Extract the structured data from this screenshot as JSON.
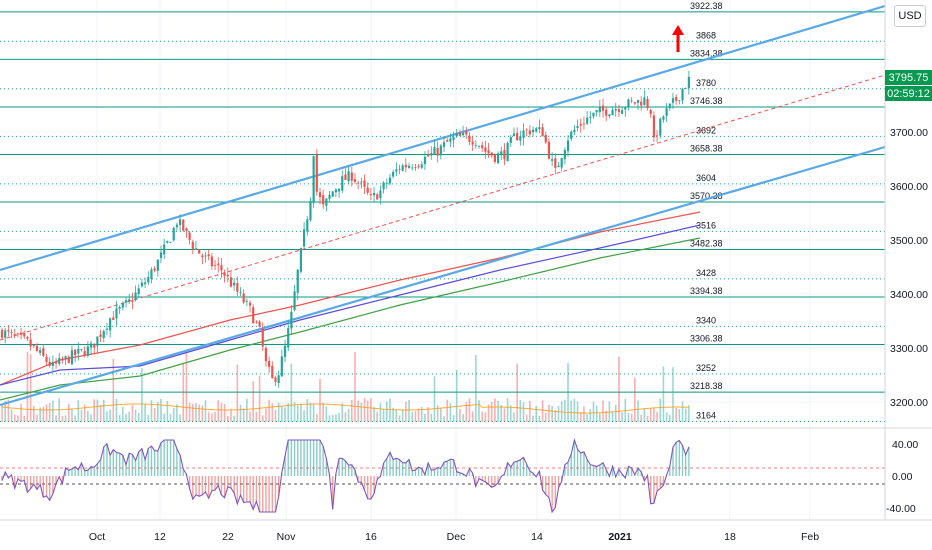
{
  "currency_button": "USD",
  "last_price": "3795.75",
  "countdown": "02:59:12",
  "colors": {
    "level_line": "#089981",
    "channel": "#5aa9e6",
    "up_candle": "#26a69a",
    "down_candle": "#ef5350",
    "ma_red": "#ef5350",
    "ma_purple": "#5b4ed8",
    "ma_green": "#43a047",
    "osc_line": "#7e57c2",
    "arrow": "#ff0000"
  },
  "x_ticks": [
    "Oct",
    "12",
    "22",
    "Nov",
    "16",
    "Dec",
    "14",
    "2021",
    "18",
    "Feb"
  ],
  "y_ticks": [
    "3700.00",
    "3600.00",
    "3500.00",
    "3400.00",
    "3300.00",
    "3200.00"
  ],
  "osc_ticks": [
    "40.00",
    "0.00",
    "-40.00"
  ],
  "level_labels": [
    "3922.38",
    "3868",
    "3834.38",
    "3780",
    "3746.38",
    "3692",
    "3658.38",
    "3604",
    "3570.38",
    "3516",
    "3482.38",
    "3428",
    "3394.38",
    "3340",
    "3306.38",
    "3252",
    "3218.38",
    "3164"
  ],
  "chart_data": {
    "type": "candlestick",
    "price_axis": {
      "ticks": [
        3200,
        3300,
        3400,
        3500,
        3600,
        3700
      ],
      "range": [
        3150,
        3930
      ]
    },
    "x_axis_labels": [
      "Oct",
      "12",
      "22",
      "Nov",
      "16",
      "Dec",
      "14",
      "2021",
      "18",
      "Feb"
    ],
    "levels": [
      {
        "value": 3922.38,
        "style": "solid"
      },
      {
        "value": 3868,
        "style": "dotted"
      },
      {
        "value": 3834.38,
        "style": "solid"
      },
      {
        "value": 3780,
        "style": "dotted"
      },
      {
        "value": 3746.38,
        "style": "solid"
      },
      {
        "value": 3692,
        "style": "dotted"
      },
      {
        "value": 3658.38,
        "style": "solid"
      },
      {
        "value": 3604,
        "style": "dotted"
      },
      {
        "value": 3570.38,
        "style": "solid"
      },
      {
        "value": 3516,
        "style": "dotted"
      },
      {
        "value": 3482.38,
        "style": "solid"
      },
      {
        "value": 3428,
        "style": "dotted"
      },
      {
        "value": 3394.38,
        "style": "solid"
      },
      {
        "value": 3340,
        "style": "dotted"
      },
      {
        "value": 3306.38,
        "style": "solid"
      },
      {
        "value": 3252,
        "style": "dotted"
      },
      {
        "value": 3218.38,
        "style": "solid"
      },
      {
        "value": 3164,
        "style": "dotted"
      }
    ],
    "close_path": [
      [
        0,
        3330
      ],
      [
        8,
        3310
      ],
      [
        16,
        3265
      ],
      [
        22,
        3285
      ],
      [
        28,
        3300
      ],
      [
        34,
        3355
      ],
      [
        40,
        3385
      ],
      [
        46,
        3430
      ],
      [
        50,
        3470
      ],
      [
        53,
        3505
      ],
      [
        55,
        3535
      ],
      [
        57,
        3520
      ],
      [
        60,
        3490
      ],
      [
        63,
        3470
      ],
      [
        66,
        3455
      ],
      [
        69,
        3445
      ],
      [
        72,
        3420
      ],
      [
        75,
        3395
      ],
      [
        78,
        3370
      ],
      [
        81,
        3330
      ],
      [
        83,
        3270
      ],
      [
        85,
        3240
      ],
      [
        87,
        3255
      ],
      [
        89,
        3300
      ],
      [
        91,
        3360
      ],
      [
        93,
        3440
      ],
      [
        95,
        3510
      ],
      [
        97,
        3580
      ],
      [
        98,
        3665
      ],
      [
        99,
        3590
      ],
      [
        101,
        3560
      ],
      [
        104,
        3590
      ],
      [
        107,
        3610
      ],
      [
        110,
        3620
      ],
      [
        113,
        3600
      ],
      [
        116,
        3575
      ],
      [
        119,
        3590
      ],
      [
        122,
        3615
      ],
      [
        125,
        3635
      ],
      [
        128,
        3640
      ],
      [
        131,
        3645
      ],
      [
        134,
        3655
      ],
      [
        137,
        3665
      ],
      [
        140,
        3680
      ],
      [
        143,
        3690
      ],
      [
        146,
        3690
      ],
      [
        149,
        3685
      ],
      [
        152,
        3665
      ],
      [
        155,
        3655
      ],
      [
        158,
        3660
      ],
      [
        161,
        3690
      ],
      [
        164,
        3700
      ],
      [
        167,
        3705
      ],
      [
        170,
        3700
      ],
      [
        172,
        3660
      ],
      [
        174,
        3625
      ],
      [
        176,
        3660
      ],
      [
        178,
        3690
      ],
      [
        181,
        3710
      ],
      [
        184,
        3725
      ],
      [
        187,
        3735
      ],
      [
        190,
        3740
      ],
      [
        193,
        3745
      ],
      [
        196,
        3750
      ],
      [
        199,
        3755
      ],
      [
        202,
        3760
      ],
      [
        204,
        3740
      ],
      [
        205,
        3680
      ],
      [
        206,
        3700
      ],
      [
        208,
        3730
      ],
      [
        210,
        3745
      ],
      [
        212,
        3760
      ],
      [
        214,
        3780
      ],
      [
        216,
        3796
      ]
    ],
    "oscillator": {
      "ticks": [
        40,
        0,
        -40
      ],
      "bands": [
        10,
        -10
      ]
    },
    "current_price": 3795.75,
    "countdown": "02:59:12"
  }
}
